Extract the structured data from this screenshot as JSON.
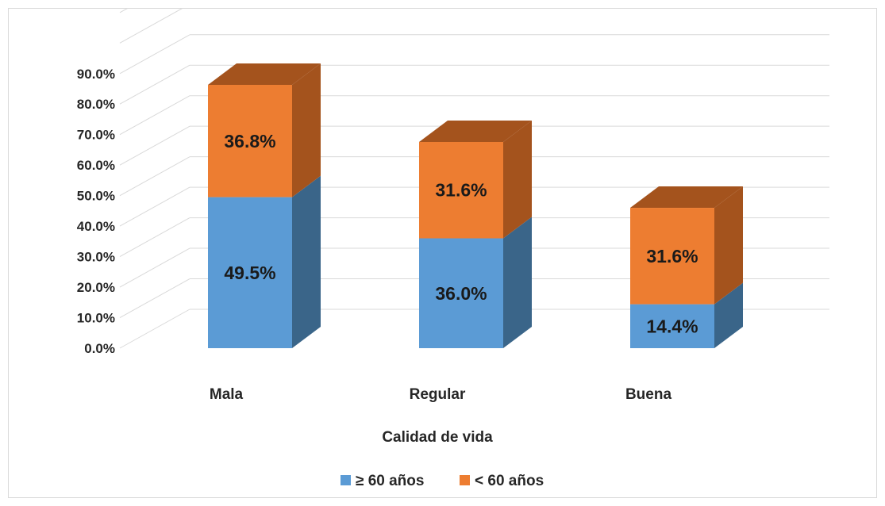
{
  "chart_data": {
    "type": "bar",
    "stacked": true,
    "three_d": true,
    "categories": [
      "Mala",
      "Regular",
      "Buena"
    ],
    "series": [
      {
        "name": "≥ 60 años",
        "values": [
          49.5,
          36.0,
          14.4
        ],
        "labels": [
          "49.5%",
          "36.0%",
          "14.4%"
        ],
        "color": "#5b9bd5",
        "side_color": "#3a6589"
      },
      {
        "name": "< 60 años",
        "values": [
          36.8,
          31.6,
          31.6
        ],
        "labels": [
          "36.8%",
          "31.6%",
          "31.6%"
        ],
        "color": "#ed7d31",
        "side_color": "#a4531d"
      }
    ],
    "xlabel": "Calidad de vida",
    "ylabel": "",
    "ylim": [
      0,
      110
    ],
    "yticks": [
      0,
      10,
      20,
      30,
      40,
      50,
      60,
      70,
      80,
      90
    ],
    "ytick_labels": [
      "0.0%",
      "10.0%",
      "20.0%",
      "30.0%",
      "40.0%",
      "50.0%",
      "60.0%",
      "70.0%",
      "80.0%",
      "90.0%"
    ],
    "grid": true,
    "legend_position": "bottom"
  }
}
